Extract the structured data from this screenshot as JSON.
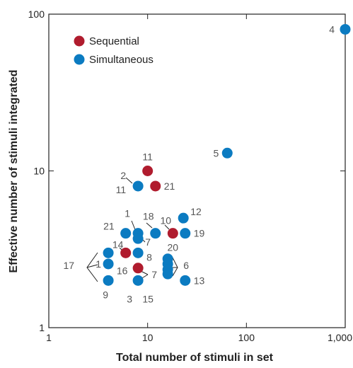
{
  "chart_data": {
    "type": "scatter",
    "xlabel": "Total number of stimuli in set",
    "ylabel": "Effective number of stimuli integrated",
    "xscale": "log",
    "yscale": "log",
    "xlim": [
      1,
      1000
    ],
    "ylim": [
      1,
      100
    ],
    "x_ticks": [
      {
        "value": 1,
        "label": "1"
      },
      {
        "value": 10,
        "label": "10"
      },
      {
        "value": 100,
        "label": "100"
      },
      {
        "value": 1000,
        "label": "1,000"
      }
    ],
    "y_ticks": [
      {
        "value": 1,
        "label": "1"
      },
      {
        "value": 10,
        "label": "10"
      },
      {
        "value": 100,
        "label": "100"
      }
    ],
    "legend_position": "top-left",
    "series": [
      {
        "name": "Sequential",
        "color": "#b01c2e",
        "points": [
          {
            "x": 10,
            "y": 10
          },
          {
            "x": 12,
            "y": 8
          },
          {
            "x": 18,
            "y": 4
          },
          {
            "x": 6,
            "y": 3
          },
          {
            "x": 8,
            "y": 2.4
          }
        ]
      },
      {
        "name": "Simultaneous",
        "color": "#0b7bc1",
        "points": [
          {
            "x": 1000,
            "y": 80
          },
          {
            "x": 64,
            "y": 13
          },
          {
            "x": 8,
            "y": 8
          },
          {
            "x": 23,
            "y": 5
          },
          {
            "x": 6,
            "y": 4
          },
          {
            "x": 8,
            "y": 4
          },
          {
            "x": 8,
            "y": 3.7
          },
          {
            "x": 12,
            "y": 4
          },
          {
            "x": 24,
            "y": 4
          },
          {
            "x": 8,
            "y": 3
          },
          {
            "x": 4,
            "y": 3
          },
          {
            "x": 4,
            "y": 2.55
          },
          {
            "x": 4,
            "y": 2
          },
          {
            "x": 8,
            "y": 2
          },
          {
            "x": 16,
            "y": 2.75
          },
          {
            "x": 16,
            "y": 2.55
          },
          {
            "x": 16,
            "y": 2.35
          },
          {
            "x": 16,
            "y": 2.2
          },
          {
            "x": 24,
            "y": 2
          }
        ]
      }
    ],
    "labels": [
      {
        "text": "4",
        "x": 1000,
        "y": 80,
        "dx": -15,
        "dy": 0,
        "anchor": "end"
      },
      {
        "text": "5",
        "x": 64,
        "y": 13,
        "dx": -12,
        "dy": 0,
        "anchor": "end"
      },
      {
        "text": "11",
        "x": 10,
        "y": 10,
        "dx": 0,
        "dy": -20,
        "anchor": "middle"
      },
      {
        "text": "2",
        "x": 8,
        "y": 8,
        "dx": -17,
        "dy": -15,
        "anchor": "end"
      },
      {
        "text": "11",
        "x": 8,
        "y": 8,
        "dx": -17,
        "dy": 5,
        "anchor": "end"
      },
      {
        "text": "21",
        "x": 12,
        "y": 8,
        "dx": 12,
        "dy": 0,
        "anchor": "start"
      },
      {
        "text": "12",
        "x": 23,
        "y": 5,
        "dx": 10,
        "dy": -9,
        "anchor": "start"
      },
      {
        "text": "1",
        "x": 8,
        "y": 4,
        "dx": -15,
        "dy": -28,
        "anchor": "middle"
      },
      {
        "text": "21",
        "x": 6,
        "y": 4,
        "dx": -16,
        "dy": -10,
        "anchor": "end"
      },
      {
        "text": "18",
        "x": 12,
        "y": 4,
        "dx": -10,
        "dy": -24,
        "anchor": "middle"
      },
      {
        "text": "10",
        "x": 18,
        "y": 4,
        "dx": -10,
        "dy": -18,
        "anchor": "middle"
      },
      {
        "text": "19",
        "x": 24,
        "y": 4,
        "dx": 12,
        "dy": 0,
        "anchor": "start"
      },
      {
        "text": "7",
        "x": 8,
        "y": 3.7,
        "dx": 14,
        "dy": 5,
        "anchor": "middle"
      },
      {
        "text": "20",
        "x": 18,
        "y": 4,
        "dx": 0,
        "dy": 20,
        "anchor": "middle"
      },
      {
        "text": "14",
        "x": 6,
        "y": 3,
        "dx": -11,
        "dy": -12,
        "anchor": "middle"
      },
      {
        "text": "8",
        "x": 8,
        "y": 3,
        "dx": 12,
        "dy": 6,
        "anchor": "start"
      },
      {
        "text": "17",
        "x": 4,
        "y": 2.5,
        "dx": -48,
        "dy": 0,
        "anchor": "end"
      },
      {
        "text": "1",
        "x": 4,
        "y": 2.55,
        "dx": -10,
        "dy": 0,
        "anchor": "end"
      },
      {
        "text": "16",
        "x": 6,
        "y": 3,
        "dx": -5,
        "dy": 25,
        "anchor": "middle"
      },
      {
        "text": "7",
        "x": 8,
        "y": 2.4,
        "dx": 23,
        "dy": 9,
        "anchor": "middle"
      },
      {
        "text": "6",
        "x": 16,
        "y": 2.5,
        "dx": 26,
        "dy": 0,
        "anchor": "middle"
      },
      {
        "text": "9",
        "x": 4,
        "y": 2,
        "dx": -4,
        "dy": 20,
        "anchor": "middle"
      },
      {
        "text": "3",
        "x": 8,
        "y": 2,
        "dx": -12,
        "dy": 26,
        "anchor": "middle"
      },
      {
        "text": "15",
        "x": 8,
        "y": 2,
        "dx": 14,
        "dy": 26,
        "anchor": "middle"
      },
      {
        "text": "13",
        "x": 24,
        "y": 2,
        "dx": 12,
        "dy": 0,
        "anchor": "start"
      }
    ]
  }
}
